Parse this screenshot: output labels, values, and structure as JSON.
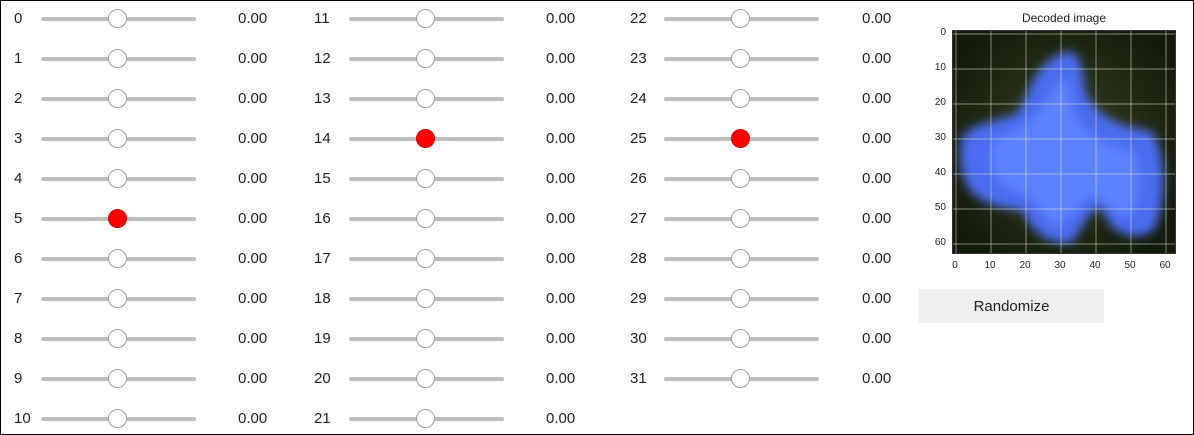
{
  "sliders": [
    {
      "label": "0",
      "value": "0.00"
    },
    {
      "label": "1",
      "value": "0.00"
    },
    {
      "label": "2",
      "value": "0.00"
    },
    {
      "label": "3",
      "value": "0.00"
    },
    {
      "label": "4",
      "value": "0.00"
    },
    {
      "label": "5",
      "value": "0.00",
      "active": true
    },
    {
      "label": "6",
      "value": "0.00"
    },
    {
      "label": "7",
      "value": "0.00"
    },
    {
      "label": "8",
      "value": "0.00"
    },
    {
      "label": "9",
      "value": "0.00"
    },
    {
      "label": "10",
      "value": "0.00"
    },
    {
      "label": "11",
      "value": "0.00"
    },
    {
      "label": "12",
      "value": "0.00"
    },
    {
      "label": "13",
      "value": "0.00"
    },
    {
      "label": "14",
      "value": "0.00",
      "active": true
    },
    {
      "label": "15",
      "value": "0.00"
    },
    {
      "label": "16",
      "value": "0.00"
    },
    {
      "label": "17",
      "value": "0.00"
    },
    {
      "label": "18",
      "value": "0.00"
    },
    {
      "label": "19",
      "value": "0.00"
    },
    {
      "label": "20",
      "value": "0.00"
    },
    {
      "label": "21",
      "value": "0.00"
    },
    {
      "label": "22",
      "value": "0.00"
    },
    {
      "label": "23",
      "value": "0.00"
    },
    {
      "label": "24",
      "value": "0.00"
    },
    {
      "label": "25",
      "value": "0.00",
      "active": true
    },
    {
      "label": "26",
      "value": "0.00"
    },
    {
      "label": "27",
      "value": "0.00"
    },
    {
      "label": "28",
      "value": "0.00"
    },
    {
      "label": "29",
      "value": "0.00"
    },
    {
      "label": "30",
      "value": "0.00"
    },
    {
      "label": "31",
      "value": "0.00"
    }
  ],
  "slider_range": [
    -1,
    1
  ],
  "slider_thumb_color_active": "#ff0000",
  "plot": {
    "title": "Decoded image",
    "y_ticks": [
      "0",
      "10",
      "20",
      "30",
      "40",
      "50",
      "60"
    ],
    "x_ticks": [
      "0",
      "10",
      "20",
      "30",
      "40",
      "50",
      "60"
    ]
  },
  "button": {
    "label": "Randomize"
  }
}
